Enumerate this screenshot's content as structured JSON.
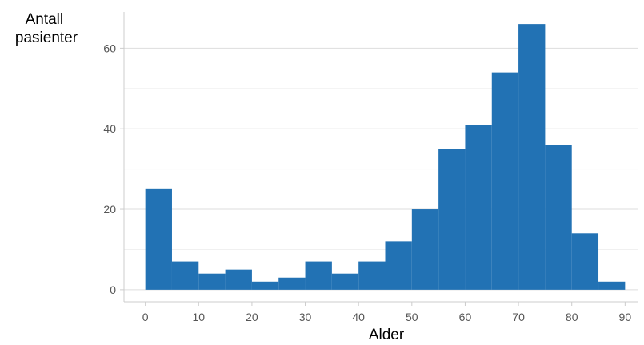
{
  "chart_data": {
    "type": "bar",
    "subtype": "histogram",
    "xlabel": "Alder",
    "ylabel_lines": [
      "Antall",
      "pasienter"
    ],
    "x_ticks": [
      0,
      10,
      20,
      30,
      40,
      50,
      60,
      70,
      80,
      90
    ],
    "y_ticks": [
      0,
      20,
      40,
      60
    ],
    "xlim": [
      -4,
      92.5
    ],
    "ylim": [
      -3,
      69
    ],
    "bin_width": 5,
    "bin_starts": [
      0,
      5,
      10,
      15,
      20,
      25,
      30,
      35,
      40,
      45,
      50,
      55,
      60,
      65,
      70,
      75,
      80,
      85
    ],
    "values": [
      25,
      7,
      4,
      5,
      2,
      3,
      7,
      4,
      7,
      12,
      20,
      35,
      41,
      54,
      66,
      36,
      14,
      2
    ],
    "bar_color": "#2272b4",
    "grid": true
  }
}
